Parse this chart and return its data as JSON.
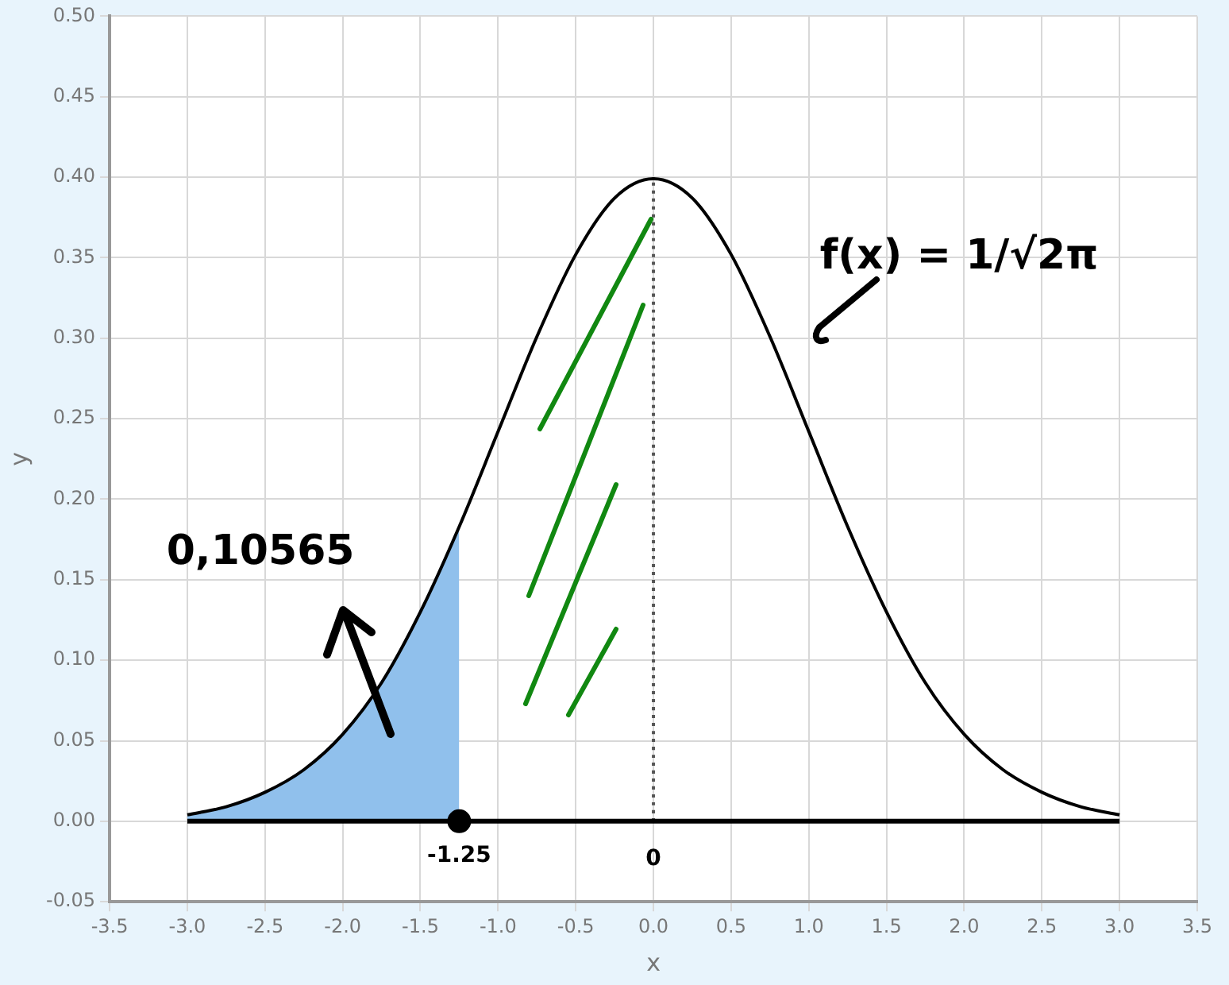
{
  "chart_data": {
    "type": "line",
    "xlabel": "x",
    "ylabel": "y",
    "xlim": [
      -3.5,
      3.5
    ],
    "ylim": [
      -0.05,
      0.5
    ],
    "xticks": [
      {
        "value": -3.5,
        "label": "-3.5"
      },
      {
        "value": -3,
        "label": "-3.0"
      },
      {
        "value": -2.5,
        "label": "-2.5"
      },
      {
        "value": -2,
        "label": "-2.0"
      },
      {
        "value": -1.5,
        "label": "-1.5"
      },
      {
        "value": -1,
        "label": "-1.0"
      },
      {
        "value": -0.5,
        "label": "-0.5"
      },
      {
        "value": 0,
        "label": "0.0"
      },
      {
        "value": 0.5,
        "label": "0.5"
      },
      {
        "value": 1,
        "label": "1.0"
      },
      {
        "value": 1.5,
        "label": "1.5"
      },
      {
        "value": 2,
        "label": "2.0"
      },
      {
        "value": 2.5,
        "label": "2.5"
      },
      {
        "value": 3,
        "label": "3.0"
      },
      {
        "value": 3.5,
        "label": "3.5"
      }
    ],
    "yticks": [
      {
        "value": -0.05,
        "label": "-0.05"
      },
      {
        "value": 0,
        "label": "0.00"
      },
      {
        "value": 0.05,
        "label": "0.05"
      },
      {
        "value": 0.1,
        "label": "0.10"
      },
      {
        "value": 0.15,
        "label": "0.15"
      },
      {
        "value": 0.2,
        "label": "0.20"
      },
      {
        "value": 0.25,
        "label": "0.25"
      },
      {
        "value": 0.3,
        "label": "0.30"
      },
      {
        "value": 0.35,
        "label": "0.35"
      },
      {
        "value": 0.4,
        "label": "0.40"
      },
      {
        "value": 0.45,
        "label": "0.45"
      },
      {
        "value": 0.5,
        "label": "0.50"
      }
    ],
    "grid": true,
    "legend": false,
    "series": [
      {
        "type": "area",
        "color": "#90c0ec",
        "x": [
          -3,
          -2.75,
          -2.5,
          -2.25,
          -2,
          -1.75,
          -1.5,
          -1.25
        ],
        "values": [
          0.004,
          0.009,
          0.018,
          0.032,
          0.054,
          0.086,
          0.13,
          0.183
        ]
      },
      {
        "type": "line",
        "color": "#000000",
        "x": [
          -3,
          -2.75,
          -2.5,
          -2.25,
          -2,
          -1.75,
          -1.5,
          -1.25,
          -1,
          -0.75,
          -0.5,
          -0.25,
          0,
          0.25,
          0.5,
          0.75,
          1,
          1.25,
          1.5,
          1.75,
          2,
          2.25,
          2.5,
          2.75,
          3
        ],
        "values": [
          0.004,
          0.009,
          0.018,
          0.032,
          0.054,
          0.086,
          0.13,
          0.183,
          0.242,
          0.301,
          0.352,
          0.387,
          0.399,
          0.387,
          0.352,
          0.301,
          0.242,
          0.183,
          0.13,
          0.086,
          0.054,
          0.032,
          0.018,
          0.009,
          0.004
        ]
      },
      {
        "type": "line",
        "color": "#000000",
        "x": [
          -3,
          3
        ],
        "values": [
          0,
          0
        ]
      },
      {
        "type": "line",
        "color": "#555555",
        "line_style": "dotted",
        "x": [
          0,
          0
        ],
        "values": [
          0,
          0.4
        ]
      },
      {
        "type": "scatter",
        "color": "#000000",
        "marker": "circle",
        "x": [
          -1.25
        ],
        "values": [
          0
        ]
      }
    ],
    "annotations": [
      {
        "text": "-1.25",
        "x": -1.25,
        "y": 0
      },
      {
        "text": "0",
        "x": 0,
        "y": 0
      },
      "0,10565",
      "f(x) = 1/√2π"
    ]
  }
}
